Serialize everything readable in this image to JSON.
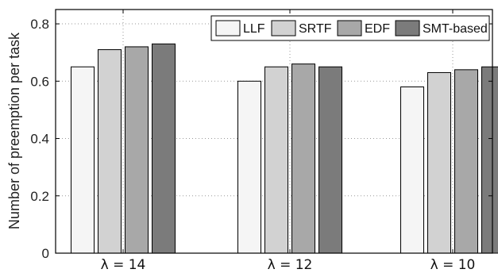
{
  "chart_data": {
    "type": "bar",
    "categories": [
      "λ = 14",
      "λ = 12",
      "λ = 10"
    ],
    "series": [
      {
        "name": "LLF",
        "values": [
          0.65,
          0.6,
          0.58
        ],
        "color": "#f5f5f5"
      },
      {
        "name": "SRTF",
        "values": [
          0.71,
          0.65,
          0.63
        ],
        "color": "#d2d2d2"
      },
      {
        "name": "EDF",
        "values": [
          0.72,
          0.66,
          0.64
        ],
        "color": "#a8a8a8"
      },
      {
        "name": "SMT-based",
        "values": [
          0.73,
          0.65,
          0.65
        ],
        "color": "#7b7b7b"
      }
    ],
    "ylabel": "Number of preemption per task",
    "ylim": [
      0,
      0.85
    ],
    "yticks": [
      "0",
      "0.2",
      "0.4",
      "0.6",
      "0.8"
    ],
    "grid": true,
    "legend_position": "top-right"
  }
}
